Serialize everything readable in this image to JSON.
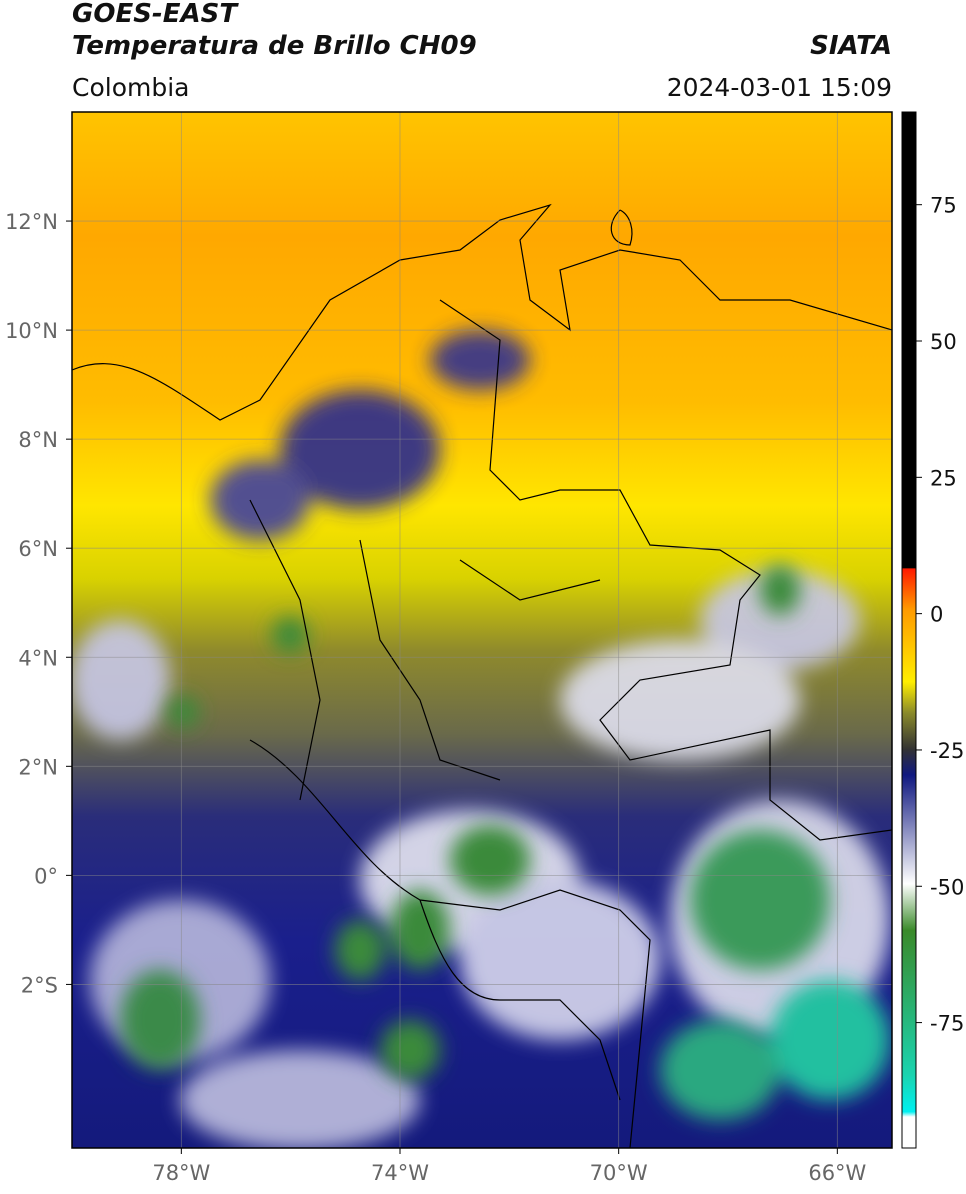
{
  "header": {
    "title": "GOES-EAST",
    "subtitle": "Temperatura de Brillo CH09",
    "source": "SIATA",
    "region": "Colombia",
    "timestamp": "2024-03-01 15:09"
  },
  "map": {
    "xlim": [
      -80,
      -65
    ],
    "ylim": [
      -5,
      14
    ],
    "xticks": [
      {
        "value": -78,
        "label": "78°W"
      },
      {
        "value": -74,
        "label": "74°W"
      },
      {
        "value": -70,
        "label": "70°W"
      },
      {
        "value": -66,
        "label": "66°W"
      }
    ],
    "yticks": [
      {
        "value": 12,
        "label": "12°N"
      },
      {
        "value": 10,
        "label": "10°N"
      },
      {
        "value": 8,
        "label": "8°N"
      },
      {
        "value": 6,
        "label": "6°N"
      },
      {
        "value": 4,
        "label": "4°N"
      },
      {
        "value": 2,
        "label": "2°N"
      },
      {
        "value": 0,
        "label": "0°"
      },
      {
        "value": -2,
        "label": "2°S"
      }
    ],
    "grid": true
  },
  "colorbar": {
    "lim": [
      -98,
      92
    ],
    "ticks": [
      75,
      50,
      25,
      0,
      -25,
      -50,
      -75
    ]
  }
}
